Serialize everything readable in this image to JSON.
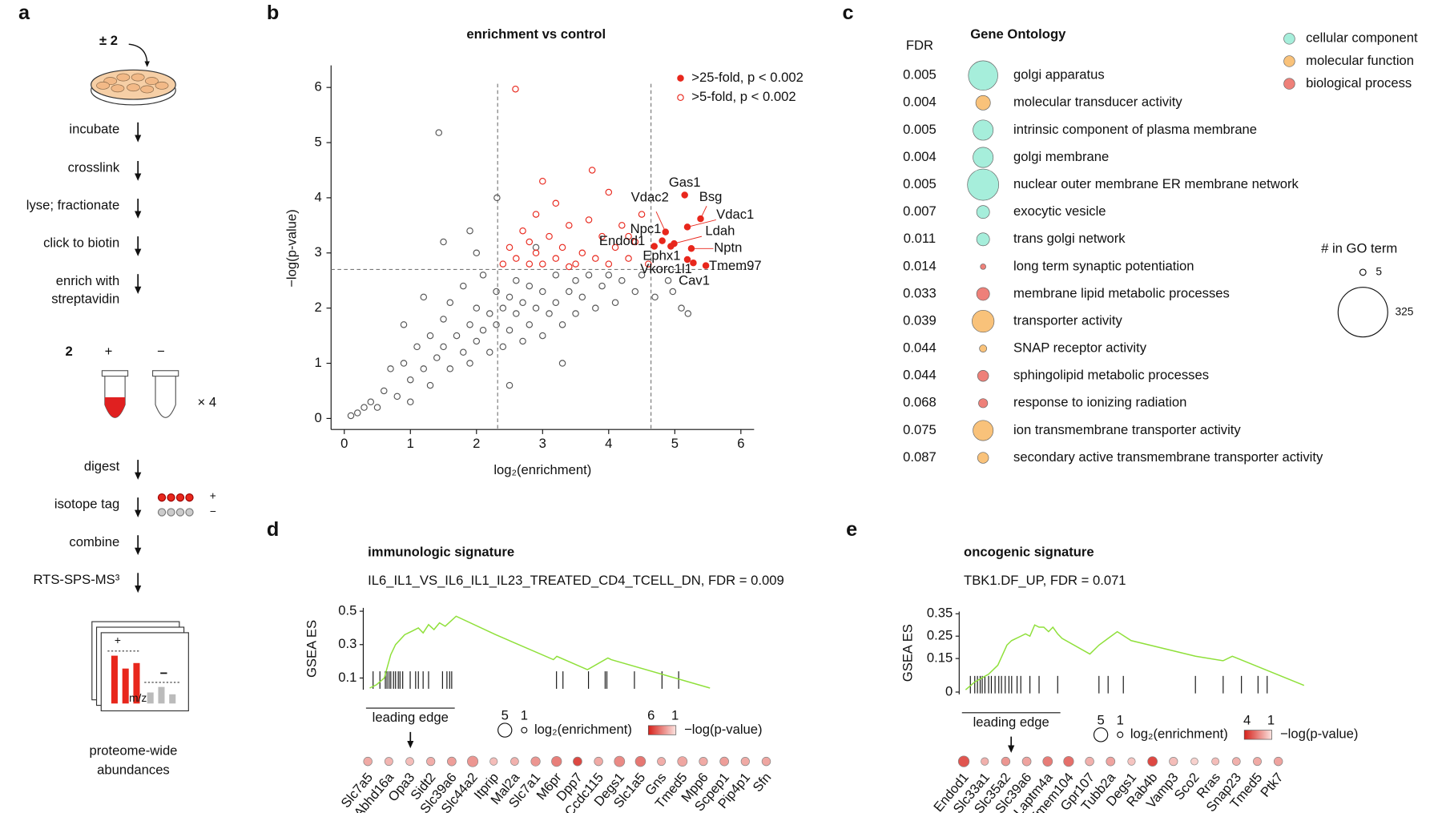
{
  "panel_a": {
    "letter": "a",
    "compound": "± 2",
    "steps_top": [
      [
        "incubate"
      ],
      [
        "crosslink"
      ],
      [
        "lyse; fractionate"
      ],
      [
        "click to biotin"
      ],
      [
        "enrich with",
        "streptavidin"
      ]
    ],
    "compound_label": "2",
    "plus": "+",
    "minus": "−",
    "replicates": "× 4",
    "steps_bottom": [
      [
        "digest"
      ],
      [
        "isotope tag"
      ],
      [
        "combine"
      ],
      [
        "RTS-SPS-MS³"
      ]
    ],
    "tag_plus": "+",
    "tag_minus": "−",
    "spectrum_plus": "+",
    "spectrum_minus": "−",
    "spectrum_axis": "m/z",
    "output": [
      "proteome-wide",
      "abundances"
    ]
  },
  "chart_data": [
    {
      "panel": "b",
      "type": "scatter",
      "title": "enrichment vs control",
      "xlabel": "log₂(enrichment)",
      "ylabel": "−log(p-value)",
      "xlim": [
        -0.2,
        6.2
      ],
      "ylim": [
        -0.2,
        6.4
      ],
      "xticks": [
        0,
        1,
        2,
        3,
        4,
        5,
        6
      ],
      "yticks": [
        0,
        1,
        2,
        3,
        4,
        5,
        6
      ],
      "thresholds_x": [
        2.32,
        4.64
      ],
      "threshold_y": 2.7,
      "legend": "upper right",
      "series": [
        {
          "color": "#555555",
          "marker": "open",
          "x": [
            0.1,
            0.2,
            0.4,
            0.5,
            0.6,
            0.7,
            0.8,
            0.9,
            1.0,
            1.1,
            1.2,
            1.3,
            1.3,
            1.4,
            1.5,
            1.5,
            1.6,
            1.6,
            1.7,
            1.8,
            1.8,
            1.9,
            1.9,
            2.0,
            2.0,
            2.1,
            2.1,
            2.2,
            2.2,
            2.3,
            2.3,
            2.4,
            2.4,
            2.5,
            2.5,
            2.6,
            2.6,
            2.7,
            2.7,
            2.8,
            2.8,
            2.9,
            3.0,
            3.0,
            3.1,
            3.2,
            3.2,
            3.3,
            3.4,
            3.5,
            3.5,
            3.6,
            3.7,
            3.8,
            3.9,
            4.0,
            4.1,
            4.2,
            4.4,
            4.5,
            4.7,
            4.9,
            5.1,
            5.2,
            1.43,
            2.31,
            1.9,
            1.5,
            2.0,
            1.2,
            0.9,
            2.5,
            3.3,
            1.0,
            0.3,
            2.9,
            4.97
          ],
          "values": [
            0.05,
            0.1,
            0.3,
            0.2,
            0.5,
            0.9,
            0.4,
            1.0,
            0.7,
            1.3,
            0.9,
            1.5,
            0.6,
            1.1,
            1.8,
            1.3,
            0.9,
            2.1,
            1.5,
            1.2,
            2.4,
            1.7,
            1.0,
            2.0,
            1.4,
            2.6,
            1.6,
            1.9,
            1.2,
            2.3,
            1.7,
            2.0,
            1.3,
            2.2,
            1.6,
            2.5,
            1.9,
            1.4,
            2.1,
            2.4,
            1.7,
            2.0,
            2.3,
            1.5,
            1.9,
            2.6,
            2.1,
            1.7,
            2.3,
            2.5,
            1.9,
            2.2,
            2.6,
            2.0,
            2.4,
            2.6,
            2.1,
            2.5,
            2.3,
            2.6,
            2.2,
            2.5,
            2.0,
            1.9,
            5.18,
            4.0,
            3.4,
            3.2,
            3.0,
            2.2,
            1.7,
            0.6,
            1.0,
            0.3,
            0.2,
            3.1,
            2.3
          ]
        },
        {
          "name": ">5-fold, p < 0.002",
          "color": "#e8271c",
          "marker": "open",
          "x": [
            2.4,
            2.5,
            2.6,
            2.7,
            2.8,
            2.9,
            2.9,
            3.0,
            3.1,
            3.2,
            3.2,
            3.3,
            3.4,
            3.5,
            3.6,
            3.7,
            3.8,
            3.9,
            4.0,
            4.0,
            4.1,
            4.2,
            4.3,
            4.4,
            4.5,
            4.6,
            3.75,
            2.59,
            3.0,
            2.8,
            3.4,
            4.3
          ],
          "values": [
            2.8,
            3.1,
            2.9,
            3.4,
            2.8,
            3.7,
            3.0,
            2.8,
            3.3,
            3.9,
            2.9,
            3.1,
            3.5,
            2.8,
            3.0,
            3.6,
            2.9,
            3.3,
            4.1,
            2.8,
            3.1,
            3.5,
            2.9,
            3.2,
            3.7,
            2.8,
            4.5,
            5.97,
            4.3,
            3.2,
            2.75,
            3.3
          ]
        },
        {
          "name": ">25-fold, p < 0.002",
          "color": "#e8271c",
          "marker": "filled",
          "x": [
            5.15,
            5.39,
            5.19,
            4.86,
            4.81,
            4.99,
            4.69,
            4.94,
            5.25,
            5.19,
            5.47,
            5.28
          ],
          "values": [
            4.05,
            3.62,
            3.47,
            3.38,
            3.22,
            3.17,
            3.12,
            3.12,
            3.08,
            2.88,
            2.77,
            2.82
          ],
          "labels": [
            "Gas1",
            "Bsg",
            "Vdac1",
            "Vdac2",
            "Npc1",
            "Ldah",
            "Endod1",
            "Ephx1",
            "Nptn",
            "Vkorc1l1",
            "Tmem97",
            "Cav1"
          ]
        }
      ]
    },
    {
      "panel": "c",
      "type": "bubble",
      "title": "Gene Ontology",
      "fdr_label": "FDR",
      "categories": [
        "golgi apparatus",
        "molecular transducer activity",
        "intrinsic component of plasma membrane",
        "golgi membrane",
        "nuclear outer membrane ER membrane network",
        "exocytic vesicle",
        "trans golgi network",
        "long term synaptic potentiation",
        "membrane lipid metabolic processes",
        "transporter activity",
        "SNAP receptor activity",
        "sphingolipid metabolic processes",
        "response to ionizing radiation",
        "ion transmembrane transporter activity",
        "secondary active transmembrane transporter activity"
      ],
      "fdr": [
        0.005,
        0.004,
        0.005,
        0.004,
        0.005,
        0.007,
        0.011,
        0.014,
        0.033,
        0.039,
        0.044,
        0.044,
        0.068,
        0.075,
        0.087
      ],
      "sizes": [
        114,
        28,
        54,
        54,
        129,
        22,
        22,
        4,
        22,
        64,
        7,
        16,
        11,
        54,
        16
      ],
      "groups": [
        0,
        1,
        0,
        0,
        0,
        0,
        0,
        2,
        2,
        1,
        1,
        2,
        2,
        1,
        1
      ],
      "group_legend": [
        {
          "name": "cellular component",
          "color": "#a6eedb"
        },
        {
          "name": "molecular function",
          "color": "#f9c27a"
        },
        {
          "name": "biological process",
          "color": "#ee8079"
        }
      ],
      "size_legend": {
        "title": "# in GO term",
        "values": [
          5,
          325
        ]
      }
    },
    {
      "panel": "d",
      "type": "line",
      "title": "immunologic signature",
      "subtitle": "IL6_IL1_VS_IL6_IL1_IL23_TREATED_CD4_TCELL_DN, FDR = 0.009",
      "ylabel": "GSEA ES",
      "ylim": [
        0.03,
        0.52
      ],
      "yticks": [
        0.1,
        0.3,
        0.5
      ],
      "xlim": [
        0,
        100
      ],
      "color": "#8fe03a",
      "x": [
        0,
        2,
        4.3,
        6.2,
        7.6,
        10.3,
        12.4,
        14.3,
        15.7,
        17.3,
        18.9,
        20.5,
        22.2,
        23.8,
        25.4,
        37,
        54,
        55,
        64,
        70,
        71,
        100
      ],
      "values": [
        0.04,
        0.06,
        0.1,
        0.24,
        0.3,
        0.36,
        0.38,
        0.4,
        0.37,
        0.42,
        0.39,
        0.43,
        0.41,
        0.44,
        0.47,
        0.36,
        0.21,
        0.23,
        0.15,
        0.22,
        0.21,
        0.04
      ],
      "hits": [
        1,
        3,
        4.6,
        5.1,
        5.7,
        6.2,
        7,
        7.6,
        8.4,
        8.9,
        9.7,
        11.9,
        13.5,
        14.3,
        15.7,
        17.3,
        21.4,
        22.7,
        23.5,
        24.1,
        54.9,
        56.8,
        64.3,
        69.2,
        69.7,
        77.8,
        85.9,
        90.8
      ],
      "leading_edge": {
        "label": "leading edge",
        "end": 25
      },
      "genes": [
        "Slc7a5",
        "Abhd16a",
        "Opa3",
        "Sidt2",
        "Slc39a6",
        "Slc44a2",
        "Itprip",
        "Mal2a",
        "Slc7a1",
        "M6pr",
        "Dpp7",
        "Ccdc115",
        "Degs1",
        "Slc1a5",
        "Gns",
        "Tmed5",
        "Mpp6",
        "Scpep1",
        "Pip4p1",
        "Sfn"
      ],
      "enrichment": [
        2.5,
        2.3,
        2.2,
        2.4,
        2.6,
        3.5,
        2.0,
        2.2,
        2.8,
        3.2,
        2.6,
        2.5,
        3.4,
        3.3,
        2.3,
        3.0,
        2.4,
        2.6,
        2.4,
        2.5
      ],
      "pvalue": [
        2.5,
        2.2,
        2.0,
        2.4,
        2.8,
        3.0,
        2.0,
        2.3,
        3.0,
        3.6,
        5.0,
        2.5,
        3.3,
        3.8,
        2.4,
        2.6,
        2.5,
        2.8,
        2.5,
        2.6
      ],
      "size_legend": {
        "label": "log₂(enrichment)",
        "values": [
          5,
          1
        ]
      },
      "color_legend": {
        "label": "−log(p-value)",
        "values": [
          6,
          1
        ]
      }
    },
    {
      "panel": "e",
      "type": "line",
      "title": "oncogenic signature",
      "subtitle": "TBK1.DF_UP, FDR = 0.071",
      "ylabel": "GSEA ES",
      "ylim": [
        -0.01,
        0.36
      ],
      "yticks": [
        0,
        0.15,
        0.25,
        0.35
      ],
      "xlim": [
        0,
        100
      ],
      "color": "#8fe03a",
      "x": [
        0,
        2.7,
        6.8,
        9.5,
        12.2,
        13.6,
        16.3,
        17.7,
        19,
        20.4,
        21.7,
        23.1,
        24.5,
        25.8,
        27.2,
        28.5,
        36.7,
        39.4,
        42.1,
        44.8,
        48.9,
        67.9,
        76.1,
        78.8,
        100
      ],
      "values": [
        0.01,
        0.045,
        0.08,
        0.12,
        0.21,
        0.23,
        0.25,
        0.26,
        0.25,
        0.3,
        0.29,
        0.29,
        0.27,
        0.29,
        0.26,
        0.24,
        0.17,
        0.21,
        0.24,
        0.27,
        0.23,
        0.16,
        0.14,
        0.16,
        0.03
      ],
      "hits": [
        1.4,
        2.7,
        3.5,
        4.3,
        4.9,
        5.7,
        6.8,
        7.6,
        8.7,
        9.8,
        10.6,
        11.7,
        12.8,
        13.6,
        15.2,
        16.3,
        19,
        21.7,
        27.2,
        39.4,
        42.1,
        46.6,
        67.9,
        76.1,
        81.5,
        86.4,
        89.1
      ],
      "leading_edge": {
        "label": "leading edge",
        "end": 28
      },
      "genes": [
        "Endod1",
        "Slc33a1",
        "Slc35a2",
        "Slc39a6",
        "Laptm4a",
        "Tmem104",
        "Gpr107",
        "Tubb2a",
        "Degs1",
        "Rab4b",
        "Vamp3",
        "Sco2",
        "Rras",
        "Snap23",
        "Tmed5",
        "Ptk7"
      ],
      "enrichment": [
        3.6,
        2.0,
        2.5,
        2.6,
        3.0,
        3.2,
        2.5,
        2.6,
        2.0,
        3.0,
        2.4,
        1.8,
        1.9,
        2.2,
        2.3,
        2.5
      ],
      "pvalue": [
        3.2,
        1.8,
        2.2,
        2.0,
        2.6,
        2.8,
        1.8,
        2.0,
        1.5,
        3.4,
        1.6,
        1.3,
        1.6,
        1.8,
        1.9,
        2.0
      ],
      "size_legend": {
        "label": "log₂(enrichment)",
        "values": [
          5,
          1
        ]
      },
      "color_legend": {
        "label": "−log(p-value)",
        "values": [
          4,
          1
        ]
      }
    }
  ]
}
